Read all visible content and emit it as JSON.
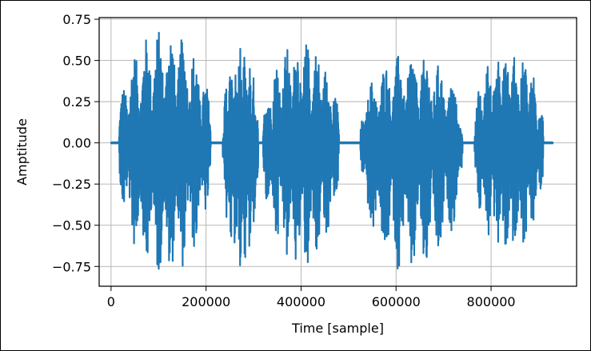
{
  "chart_data": {
    "type": "line",
    "title": "",
    "xlabel": "Time [sample]",
    "ylabel": "Amptitude",
    "xlim": [
      -25000,
      980000
    ],
    "ylim": [
      -0.87,
      0.76
    ],
    "x_ticks": [
      0,
      200000,
      400000,
      600000,
      800000
    ],
    "x_tick_labels": [
      "0",
      "200000",
      "400000",
      "600000",
      "800000"
    ],
    "y_ticks": [
      0.75,
      0.5,
      0.25,
      0.0,
      -0.25,
      -0.5,
      -0.75
    ],
    "y_tick_labels": [
      "0.75",
      "0.50",
      "0.25",
      "0.00",
      "−0.25",
      "−0.50",
      "−0.75"
    ],
    "grid": true,
    "line_color": "#1f77b4",
    "series": [
      {
        "sample_count": 930000,
        "bursts": [
          {
            "x_start": 17000,
            "x_end": 210000,
            "y_max": 0.69,
            "y_min": -0.81
          },
          {
            "x_start": 235000,
            "x_end": 310000,
            "y_max": 0.59,
            "y_min": -0.75
          },
          {
            "x_start": 320000,
            "x_end": 480000,
            "y_max": 0.62,
            "y_min": -0.78
          },
          {
            "x_start": 525000,
            "x_end": 740000,
            "y_max": 0.55,
            "y_min": -0.8
          },
          {
            "x_start": 765000,
            "x_end": 910000,
            "y_max": 0.59,
            "y_min": -0.72
          }
        ]
      }
    ]
  }
}
